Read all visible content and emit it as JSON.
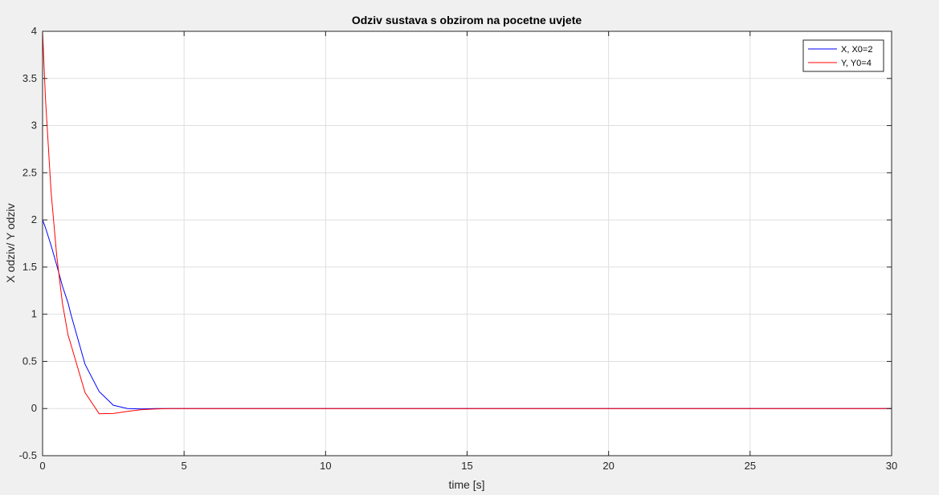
{
  "colors": {
    "figure_bg": "#f0f0f0",
    "axes_bg": "#ffffff",
    "grid": "#dfdfdf",
    "axis": "#262626",
    "series_x": "#0000ff",
    "series_y": "#ff0000"
  },
  "chart_data": {
    "type": "line",
    "title": "Odziv sustava s obzirom na pocetne uvjete",
    "xlabel": "time [s]",
    "ylabel": "X odziv/ Y odziv",
    "xlim": [
      0,
      30
    ],
    "ylim": [
      -0.5,
      4
    ],
    "xticks": [
      "0",
      "5",
      "10",
      "15",
      "20",
      "25",
      "30"
    ],
    "yticks": [
      "-0.5",
      "0",
      "0.5",
      "1",
      "1.5",
      "2",
      "2.5",
      "3",
      "3.5",
      "4"
    ],
    "grid": true,
    "legend_position": "top-right",
    "x": [
      0,
      0.1,
      0.3,
      0.5,
      0.7,
      0.9,
      1.0,
      1.5,
      2.0,
      2.5,
      3.0,
      3.5,
      4.0,
      4.5,
      5.0,
      6,
      8,
      10,
      15,
      20,
      25,
      30
    ],
    "series": [
      {
        "name": "X, X0=2",
        "color": "#0000ff",
        "values": [
          2.0,
          1.92,
          1.73,
          1.52,
          1.3,
          1.12,
          1.0,
          0.47,
          0.18,
          0.035,
          0.0,
          -0.005,
          0.0,
          0.0,
          0.0,
          0,
          0,
          0,
          0,
          0,
          0,
          0
        ]
      },
      {
        "name": "Y, Y0=4",
        "color": "#ff0000",
        "values": [
          4.0,
          3.3,
          2.3,
          1.62,
          1.12,
          0.78,
          0.68,
          0.17,
          -0.055,
          -0.052,
          -0.03,
          -0.012,
          -0.005,
          0.0,
          0.0,
          0,
          0,
          0,
          0,
          0,
          0,
          0
        ]
      }
    ]
  }
}
